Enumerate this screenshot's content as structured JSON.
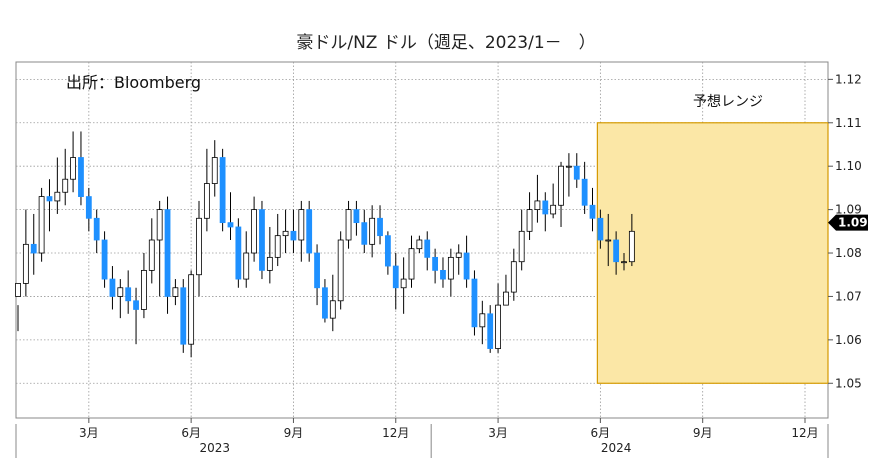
{
  "chart_data": {
    "type": "candlestick",
    "title": "豪ドル/NZ ドル（週足、2023/1－　）",
    "source": "出所：Bloomberg",
    "range_label": "予想レンジ",
    "forecast_range": {
      "x_start": "2024-06",
      "x_end": "2024-12",
      "y_low": 1.05,
      "y_high": 1.11
    },
    "ylim": [
      1.042,
      1.124
    ],
    "yticks": [
      "1.12",
      "1.11",
      "1.10",
      "1.09",
      "1.08",
      "1.07",
      "1.06",
      "1.05"
    ],
    "ytick_values": [
      1.12,
      1.11,
      1.1,
      1.09,
      1.08,
      1.07,
      1.06,
      1.05
    ],
    "last_value_label": "1.09",
    "last_value": 1.087,
    "x_month_labels": [
      {
        "label": "3月",
        "week": 9
      },
      {
        "label": "6月",
        "week": 22
      },
      {
        "label": "9月",
        "week": 35
      },
      {
        "label": "12月",
        "week": 48
      },
      {
        "label": "3月",
        "week": 61
      },
      {
        "label": "6月",
        "week": 74
      },
      {
        "label": "9月",
        "week": 87
      },
      {
        "label": "12月",
        "week": 100
      }
    ],
    "x_year_labels": [
      {
        "label": "2023",
        "week": 25
      },
      {
        "label": "2024",
        "week": 76
      }
    ],
    "candles": [
      [
        1.07,
        1.073,
        1.068,
        1.062
      ],
      [
        1.073,
        1.082,
        1.09,
        1.07
      ],
      [
        1.082,
        1.08,
        1.089,
        1.075
      ],
      [
        1.08,
        1.093,
        1.095,
        1.078
      ],
      [
        1.093,
        1.092,
        1.097,
        1.085
      ],
      [
        1.092,
        1.094,
        1.102,
        1.089
      ],
      [
        1.094,
        1.097,
        1.104,
        1.091
      ],
      [
        1.097,
        1.102,
        1.108,
        1.094
      ],
      [
        1.102,
        1.093,
        1.108,
        1.091
      ],
      [
        1.093,
        1.088,
        1.095,
        1.085
      ],
      [
        1.088,
        1.083,
        1.09,
        1.08
      ],
      [
        1.083,
        1.074,
        1.085,
        1.072
      ],
      [
        1.074,
        1.07,
        1.077,
        1.067
      ],
      [
        1.07,
        1.072,
        1.074,
        1.065
      ],
      [
        1.072,
        1.069,
        1.076,
        1.066
      ],
      [
        1.069,
        1.067,
        1.072,
        1.059
      ],
      [
        1.067,
        1.076,
        1.08,
        1.065
      ],
      [
        1.076,
        1.083,
        1.088,
        1.073
      ],
      [
        1.083,
        1.09,
        1.092,
        1.07
      ],
      [
        1.09,
        1.07,
        1.093,
        1.066
      ],
      [
        1.07,
        1.072,
        1.074,
        1.068
      ],
      [
        1.072,
        1.059,
        1.074,
        1.057
      ],
      [
        1.059,
        1.075,
        1.076,
        1.056
      ],
      [
        1.075,
        1.088,
        1.092,
        1.07
      ],
      [
        1.088,
        1.096,
        1.104,
        1.085
      ],
      [
        1.096,
        1.102,
        1.106,
        1.093
      ],
      [
        1.102,
        1.087,
        1.104,
        1.085
      ],
      [
        1.087,
        1.086,
        1.094,
        1.083
      ],
      [
        1.086,
        1.074,
        1.088,
        1.072
      ],
      [
        1.074,
        1.08,
        1.085,
        1.072
      ],
      [
        1.08,
        1.09,
        1.093,
        1.078
      ],
      [
        1.09,
        1.076,
        1.092,
        1.074
      ],
      [
        1.076,
        1.079,
        1.086,
        1.073
      ],
      [
        1.079,
        1.084,
        1.089,
        1.077
      ],
      [
        1.084,
        1.085,
        1.09,
        1.08
      ],
      [
        1.085,
        1.083,
        1.09,
        1.08
      ],
      [
        1.083,
        1.09,
        1.092,
        1.078
      ],
      [
        1.09,
        1.08,
        1.092,
        1.078
      ],
      [
        1.08,
        1.072,
        1.082,
        1.068
      ],
      [
        1.072,
        1.065,
        1.074,
        1.064
      ],
      [
        1.065,
        1.069,
        1.075,
        1.062
      ],
      [
        1.069,
        1.083,
        1.085,
        1.067
      ],
      [
        1.083,
        1.09,
        1.092,
        1.081
      ],
      [
        1.09,
        1.087,
        1.092,
        1.084
      ],
      [
        1.087,
        1.082,
        1.09,
        1.08
      ],
      [
        1.082,
        1.088,
        1.091,
        1.079
      ],
      [
        1.088,
        1.084,
        1.091,
        1.082
      ],
      [
        1.084,
        1.077,
        1.085,
        1.075
      ],
      [
        1.077,
        1.072,
        1.08,
        1.067
      ],
      [
        1.072,
        1.074,
        1.079,
        1.066
      ],
      [
        1.074,
        1.081,
        1.084,
        1.072
      ],
      [
        1.081,
        1.083,
        1.084,
        1.08
      ],
      [
        1.083,
        1.079,
        1.085,
        1.076
      ],
      [
        1.079,
        1.076,
        1.081,
        1.073
      ],
      [
        1.076,
        1.074,
        1.079,
        1.072
      ],
      [
        1.074,
        1.079,
        1.081,
        1.07
      ],
      [
        1.079,
        1.08,
        1.082,
        1.075
      ],
      [
        1.08,
        1.074,
        1.084,
        1.072
      ],
      [
        1.074,
        1.063,
        1.076,
        1.061
      ],
      [
        1.063,
        1.066,
        1.069,
        1.059
      ],
      [
        1.066,
        1.058,
        1.068,
        1.057
      ],
      [
        1.058,
        1.068,
        1.073,
        1.057
      ],
      [
        1.068,
        1.071,
        1.075,
        1.068
      ],
      [
        1.071,
        1.078,
        1.081,
        1.069
      ],
      [
        1.078,
        1.085,
        1.09,
        1.076
      ],
      [
        1.085,
        1.09,
        1.094,
        1.083
      ],
      [
        1.09,
        1.092,
        1.098,
        1.087
      ],
      [
        1.092,
        1.089,
        1.094,
        1.085
      ],
      [
        1.089,
        1.091,
        1.096,
        1.088
      ],
      [
        1.091,
        1.1,
        1.101,
        1.086
      ],
      [
        1.1,
        1.1,
        1.103,
        1.093
      ],
      [
        1.1,
        1.097,
        1.103,
        1.095
      ],
      [
        1.097,
        1.091,
        1.101,
        1.089
      ],
      [
        1.091,
        1.088,
        1.095,
        1.085
      ],
      [
        1.088,
        1.083,
        1.09,
        1.081
      ],
      [
        1.083,
        1.083,
        1.089,
        1.077
      ],
      [
        1.083,
        1.078,
        1.085,
        1.075
      ],
      [
        1.078,
        1.078,
        1.08,
        1.076
      ],
      [
        1.078,
        1.085,
        1.089,
        1.077
      ]
    ]
  },
  "style": {
    "up_color": "#ffffff",
    "down_color": "#1e90ff",
    "wick_color": "#000000",
    "range_fill": "#fbe7a6",
    "range_stroke": "#d59a00",
    "grid_color": "#9a9a9a",
    "label_bg": "#000000"
  }
}
